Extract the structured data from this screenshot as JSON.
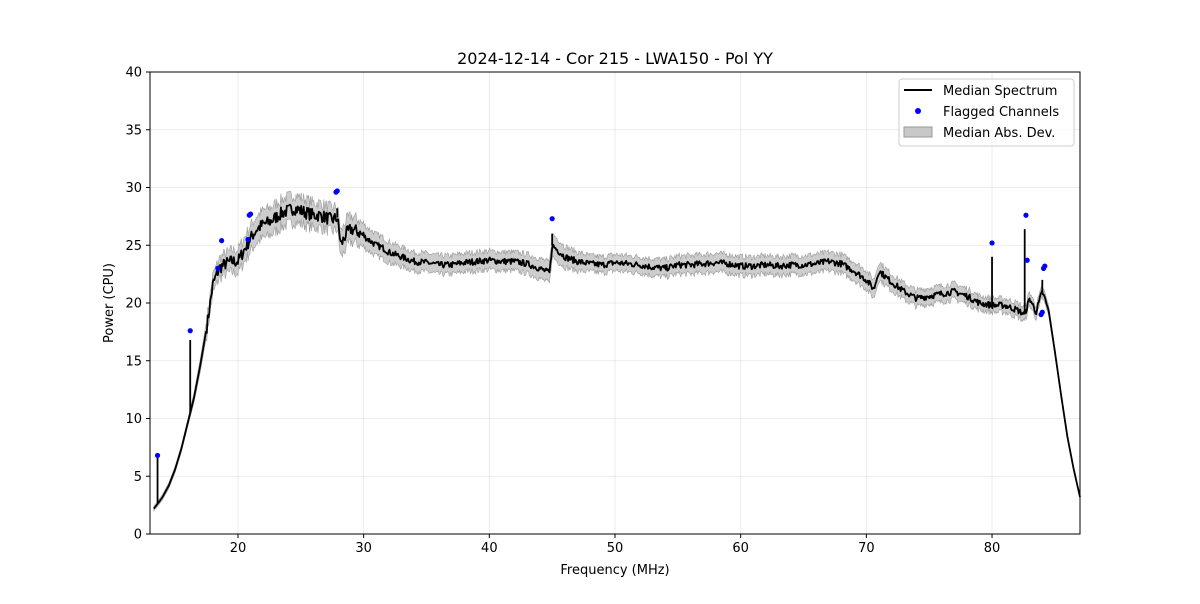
{
  "chart_data": {
    "type": "line",
    "title": "2024-12-14 - Cor 215 - LWA150 - Pol YY",
    "xlabel": "Frequency (MHz)",
    "ylabel": "Power (CPU)",
    "xlim": [
      13,
      87
    ],
    "ylim": [
      0,
      40
    ],
    "xticks": [
      20,
      30,
      40,
      50,
      60,
      70,
      80
    ],
    "yticks": [
      0,
      5,
      10,
      15,
      20,
      25,
      30,
      35,
      40
    ],
    "grid": true,
    "legend_position": "upper right",
    "legend": [
      "Median Spectrum",
      "Flagged Channels",
      "Median Abs. Dev."
    ],
    "colors": {
      "median": "#000000",
      "flagged": "#0000ff",
      "band": "#c8c8c8",
      "band_edge": "#9a9a9a"
    },
    "median_spectrum": {
      "x": [
        13.3,
        13.6,
        14.0,
        14.5,
        15.0,
        15.5,
        16.0,
        16.5,
        17.0,
        17.5,
        18.0,
        18.5,
        19.0,
        19.5,
        20.0,
        20.5,
        21.0,
        21.5,
        22.0,
        22.5,
        23.0,
        23.5,
        24.0,
        24.5,
        25.0,
        25.5,
        26.0,
        26.5,
        27.0,
        27.5,
        27.9,
        28.2,
        28.6,
        29.0,
        29.5,
        30.0,
        30.5,
        31.0,
        31.5,
        32.0,
        32.5,
        33.0,
        34.0,
        35.0,
        36.0,
        37.0,
        38.0,
        39.0,
        40.0,
        41.0,
        42.0,
        43.0,
        44.0,
        44.8,
        45.0,
        46.0,
        47.0,
        48.0,
        49.0,
        50.0,
        51.0,
        52.0,
        53.0,
        54.0,
        55.0,
        56.0,
        57.0,
        58.0,
        59.0,
        60.0,
        61.0,
        62.0,
        63.0,
        64.0,
        65.0,
        66.0,
        67.0,
        68.0,
        69.0,
        70.0,
        70.6,
        71.0,
        72.0,
        73.0,
        74.0,
        75.0,
        76.0,
        77.0,
        78.0,
        79.0,
        80.0,
        81.0,
        82.0,
        82.6,
        83.0,
        83.5,
        84.0,
        84.5,
        85.0,
        85.5,
        86.0,
        86.5,
        87.0
      ],
      "y": [
        2.2,
        2.6,
        3.2,
        4.2,
        5.6,
        7.4,
        9.6,
        11.8,
        14.6,
        17.8,
        21.6,
        23.0,
        23.4,
        23.6,
        23.6,
        24.6,
        25.6,
        26.4,
        26.8,
        27.0,
        27.4,
        27.8,
        28.0,
        28.2,
        28.0,
        27.8,
        27.6,
        27.6,
        27.4,
        27.2,
        27.4,
        25.0,
        26.0,
        26.4,
        26.2,
        25.8,
        25.4,
        25.0,
        24.8,
        24.4,
        24.2,
        24.0,
        23.6,
        23.5,
        23.3,
        23.3,
        23.5,
        23.6,
        23.7,
        23.6,
        23.6,
        23.4,
        23.0,
        22.6,
        25.0,
        24.0,
        23.6,
        23.4,
        23.3,
        23.5,
        23.4,
        23.3,
        23.1,
        23.0,
        23.3,
        23.3,
        23.4,
        23.5,
        23.4,
        23.2,
        23.2,
        23.3,
        23.2,
        23.3,
        23.3,
        23.4,
        23.6,
        23.4,
        22.8,
        22.0,
        21.2,
        22.8,
        21.8,
        21.0,
        20.4,
        20.6,
        20.8,
        21.0,
        20.6,
        20.0,
        19.8,
        19.8,
        19.4,
        19.0,
        20.4,
        19.2,
        21.0,
        19.4,
        15.8,
        12.0,
        8.4,
        5.6,
        3.2
      ],
      "spikes": [
        {
          "x": 13.6,
          "peak": 6.6
        },
        {
          "x": 16.2,
          "peak": 16.8
        },
        {
          "x": 27.9,
          "peak": 28.2
        },
        {
          "x": 45.0,
          "peak": 26.0
        },
        {
          "x": 80.0,
          "peak": 24.0
        },
        {
          "x": 82.6,
          "peak": 26.4
        },
        {
          "x": 84.0,
          "peak": 22.0
        }
      ]
    },
    "flagged_channels": {
      "x": [
        13.6,
        16.2,
        18.4,
        18.7,
        20.8,
        20.9,
        21.0,
        27.8,
        27.9,
        45.0,
        80.0,
        82.7,
        82.8,
        83.9,
        84.0,
        84.1,
        84.2
      ],
      "y": [
        6.8,
        17.6,
        23.0,
        25.4,
        25.5,
        27.6,
        27.7,
        29.6,
        29.7,
        27.3,
        25.2,
        27.6,
        23.7,
        19.0,
        19.2,
        23.0,
        23.2
      ]
    },
    "median_abs_dev": {
      "x": [
        13.3,
        16.0,
        18.0,
        20.0,
        22.0,
        24.0,
        26.0,
        27.9,
        28.5,
        30.0,
        32.0,
        34.0,
        36.0,
        38.0,
        40.0,
        42.0,
        44.8,
        45.2,
        48.0,
        52.0,
        56.0,
        60.0,
        64.0,
        68.0,
        70.6,
        72.0,
        76.0,
        80.0,
        82.6,
        84.0,
        85.0,
        87.0
      ],
      "half_width": [
        0.2,
        0.3,
        0.8,
        1.0,
        1.2,
        1.2,
        1.1,
        1.0,
        1.2,
        1.0,
        0.9,
        0.8,
        0.8,
        0.8,
        0.8,
        0.8,
        0.9,
        1.0,
        0.7,
        0.7,
        0.8,
        0.8,
        0.8,
        0.8,
        0.8,
        0.7,
        0.7,
        0.6,
        0.6,
        0.5,
        0.3,
        0.1
      ]
    }
  }
}
